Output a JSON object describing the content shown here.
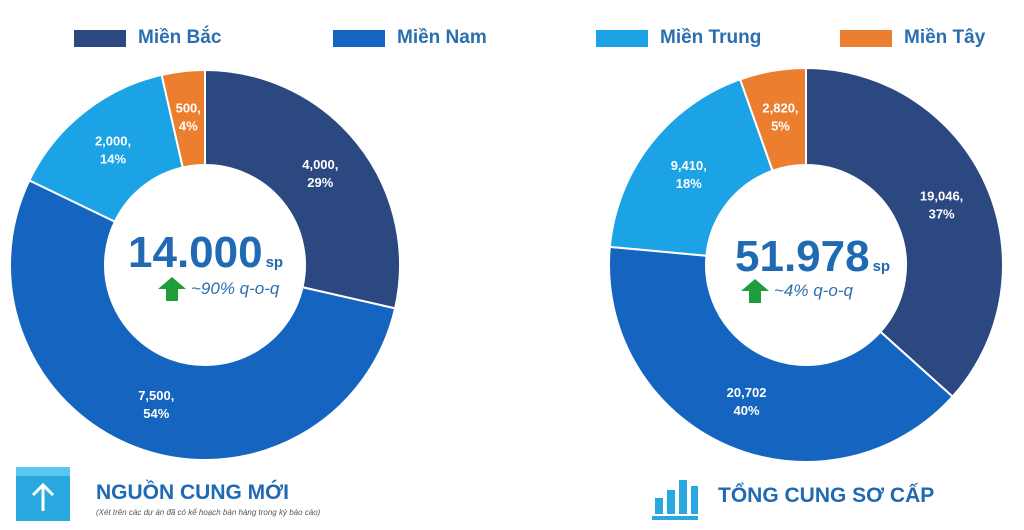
{
  "colors": {
    "mien_bac": "#2b4880",
    "mien_nam": "#1565c0",
    "mien_trung": "#1ba3e6",
    "mien_tay": "#ec7f2f",
    "accent": "#1f6ab3",
    "arrow": "#1e9e3a",
    "icon": "#29a8e0"
  },
  "legend": [
    {
      "label": "Miền Bắc",
      "color_key": "mien_bac"
    },
    {
      "label": "Miền Nam",
      "color_key": "mien_nam"
    },
    {
      "label": "Miền Trung",
      "color_key": "mien_trung"
    },
    {
      "label": "Miền Tây",
      "color_key": "mien_tay"
    }
  ],
  "chart_data": [
    {
      "type": "pie",
      "variant": "donut",
      "title": "NGUỒN CUNG MỚI",
      "subtitle": "(Xét trên các dự án đã có kế hoạch bán hàng trong kỳ báo cáo)",
      "center_value": "14.000",
      "center_unit": "sp",
      "change_text": "~90% q-o-q",
      "change_direction": "up",
      "slices": [
        {
          "region": "Miền Bắc",
          "value": 4000,
          "percent": 29,
          "value_label": "4,000,",
          "percent_label": "29%"
        },
        {
          "region": "Miền Nam",
          "value": 7500,
          "percent": 54,
          "value_label": "7,500,",
          "percent_label": "54%"
        },
        {
          "region": "Miền Trung",
          "value": 2000,
          "percent": 14,
          "value_label": "2,000,",
          "percent_label": "14%"
        },
        {
          "region": "Miền Tây",
          "value": 500,
          "percent": 4,
          "value_label": "500,",
          "percent_label": "4%"
        }
      ]
    },
    {
      "type": "pie",
      "variant": "donut",
      "title": "TỔNG CUNG SƠ CẤP",
      "center_value": "51.978",
      "center_unit": "sp",
      "change_text": "~4% q-o-q",
      "change_direction": "up",
      "slices": [
        {
          "region": "Miền Bắc",
          "value": 19046,
          "percent": 37,
          "value_label": "19,046,",
          "percent_label": "37%"
        },
        {
          "region": "Miền Nam",
          "value": 20702,
          "percent": 40,
          "value_label": "20,702",
          "percent_label": "40%"
        },
        {
          "region": "Miền Trung",
          "value": 9410,
          "percent": 18,
          "value_label": "9,410,",
          "percent_label": "18%"
        },
        {
          "region": "Miền Tây",
          "value": 2820,
          "percent": 5,
          "value_label": "2,820,",
          "percent_label": "5%"
        }
      ]
    }
  ]
}
